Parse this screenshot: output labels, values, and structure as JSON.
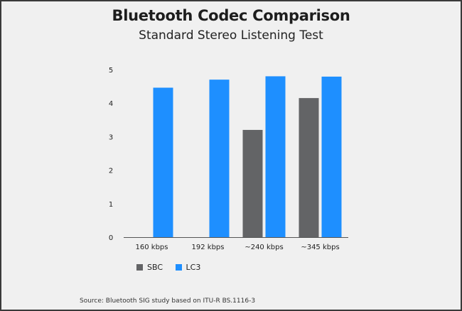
{
  "chart_data": {
    "type": "bar",
    "title": "Bluetooth Codec Comparison",
    "subtitle": "Standard Stereo Listening Test",
    "categories": [
      "160 kbps",
      "192 kbps",
      "~240 kbps",
      "~345 kbps"
    ],
    "series": [
      {
        "name": "SBC",
        "color": "#636466",
        "values": [
          null,
          null,
          3.2,
          4.15
        ]
      },
      {
        "name": "LC3",
        "color": "#1e8fff",
        "values": [
          4.46,
          4.7,
          4.8,
          4.79
        ]
      }
    ],
    "ylim": [
      0,
      5
    ],
    "yticks": [
      "0",
      "1",
      "2",
      "3",
      "4",
      "5"
    ],
    "grid": false,
    "legend_position": "bottom-left",
    "source": "Source: Bluetooth SIG study based on ITU-R BS.1116-3"
  }
}
